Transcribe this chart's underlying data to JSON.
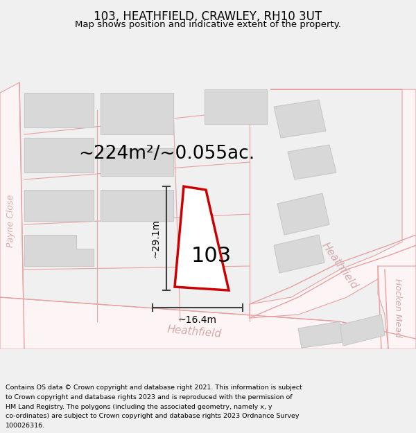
{
  "title": "103, HEATHFIELD, CRAWLEY, RH10 3UT",
  "subtitle": "Map shows position and indicative extent of the property.",
  "footer": "Contains OS data © Crown copyright and database right 2021. This information is subject to Crown copyright and database rights 2023 and is reproduced with the permission of HM Land Registry. The polygons (including the associated geometry, namely x, y co-ordinates) are subject to Crown copyright and database rights 2023 Ordnance Survey 100026316.",
  "area_label": "~224m²/~0.055ac.",
  "plot_label": "103",
  "dim_vertical": "~29.1m",
  "dim_horizontal": "~16.4m",
  "bg_color": "#f0f0f0",
  "map_bg": "#ffffff",
  "road_color": "#e8a0a0",
  "road_fill": "#fdf5f5",
  "building_color": "#d8d8d8",
  "building_outline": "#c8c8c8",
  "plot_fill": "#ffffff",
  "plot_outline": "#cc0000",
  "dim_line_color": "#404040",
  "road_label_color": "#d4aaaa",
  "street_heathfield_bottom": "Heathfield",
  "street_heathfield_right": "Heathfield",
  "street_hocken": "Hocken Mead",
  "street_payne": "Payne Close"
}
